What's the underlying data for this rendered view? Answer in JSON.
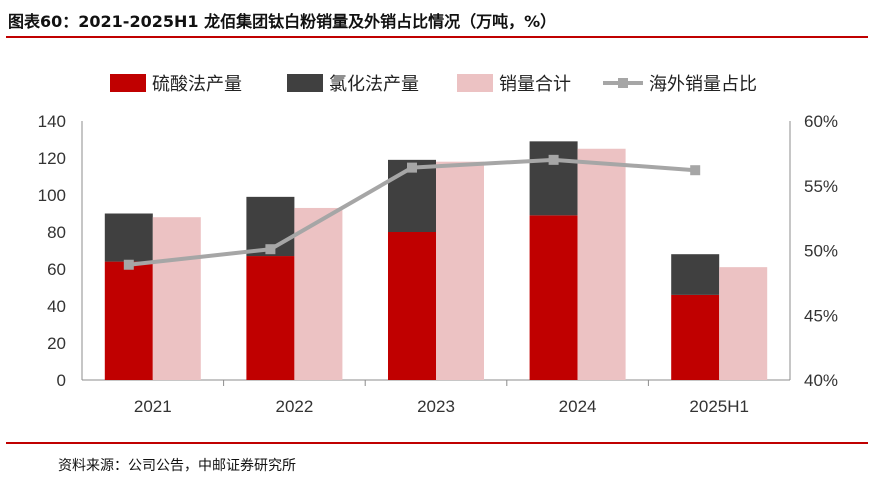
{
  "figure": {
    "title": "图表60：2021-2025H1 龙佰集团钛白粉销量及外销占比情况（万吨，%）",
    "source": "资料来源：公司公告，中邮证券研究所"
  },
  "colors": {
    "sulfate": "#c00000",
    "chloride": "#404040",
    "total": "#ecc2c3",
    "share": "#a6a6a6",
    "rule": "#c00000"
  },
  "chart_data": {
    "type": "bar",
    "categories": [
      "2021",
      "2022",
      "2023",
      "2024",
      "2025H1"
    ],
    "series": [
      {
        "name": "硫酸法产量",
        "kind": "stacked-bar",
        "values": [
          64,
          67,
          80,
          89,
          46
        ]
      },
      {
        "name": "氯化法产量",
        "kind": "stacked-bar",
        "values": [
          26,
          32,
          39,
          40,
          22
        ]
      },
      {
        "name": "销量合计",
        "kind": "bar",
        "values": [
          88,
          93,
          118,
          125,
          61
        ]
      },
      {
        "name": "海外销量占比",
        "kind": "line",
        "axis": "right",
        "values": [
          48.9,
          50.1,
          56.4,
          57.0,
          56.2
        ]
      }
    ],
    "left_axis": {
      "ylim": [
        0,
        140
      ],
      "ticks": [
        "0",
        "20",
        "40",
        "60",
        "80",
        "100",
        "120",
        "140"
      ]
    },
    "right_axis": {
      "ylim": [
        40,
        60
      ],
      "ticks": [
        "40%",
        "45%",
        "50%",
        "55%",
        "60%"
      ]
    },
    "legend_position": "top",
    "grid": false
  }
}
